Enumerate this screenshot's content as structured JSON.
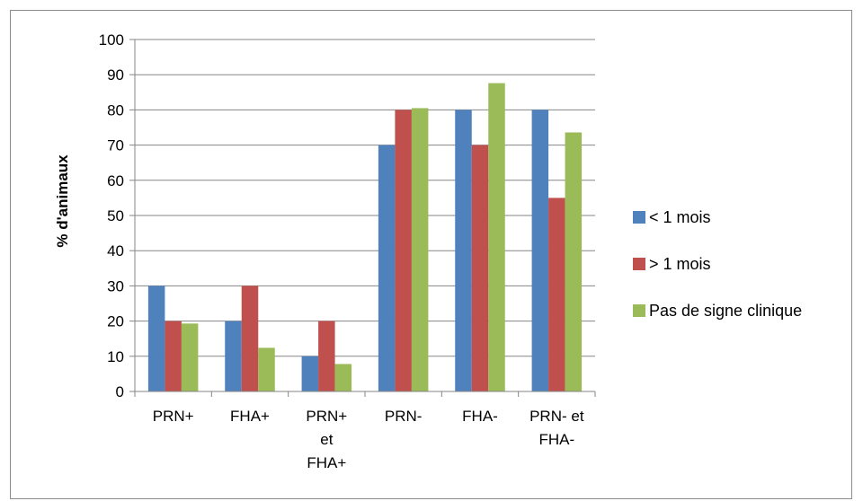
{
  "chart_data": {
    "type": "bar",
    "title": "",
    "xlabel": "",
    "ylabel": "% d'animaux",
    "ylim": [
      0,
      100
    ],
    "yticks": [
      0,
      10,
      20,
      30,
      40,
      50,
      60,
      70,
      80,
      90,
      100
    ],
    "grid": true,
    "legend_position": "right",
    "categories": [
      [
        "PRN+"
      ],
      [
        "FHA+"
      ],
      [
        "PRN+",
        "et",
        "FHA+"
      ],
      [
        "PRN-"
      ],
      [
        "FHA-"
      ],
      [
        "PRN- et",
        "FHA-"
      ]
    ],
    "series": [
      {
        "name": "< 1 mois",
        "color": "#4f81bd",
        "values": [
          30,
          20,
          10,
          70,
          80,
          80
        ]
      },
      {
        "name": "> 1 mois",
        "color": "#c0504d",
        "values": [
          20,
          30,
          20,
          80,
          70,
          55
        ]
      },
      {
        "name": "Pas de signe clinique",
        "color": "#9bbb59",
        "values": [
          19.3,
          12.4,
          7.8,
          80.5,
          87.6,
          73.6
        ]
      }
    ]
  }
}
